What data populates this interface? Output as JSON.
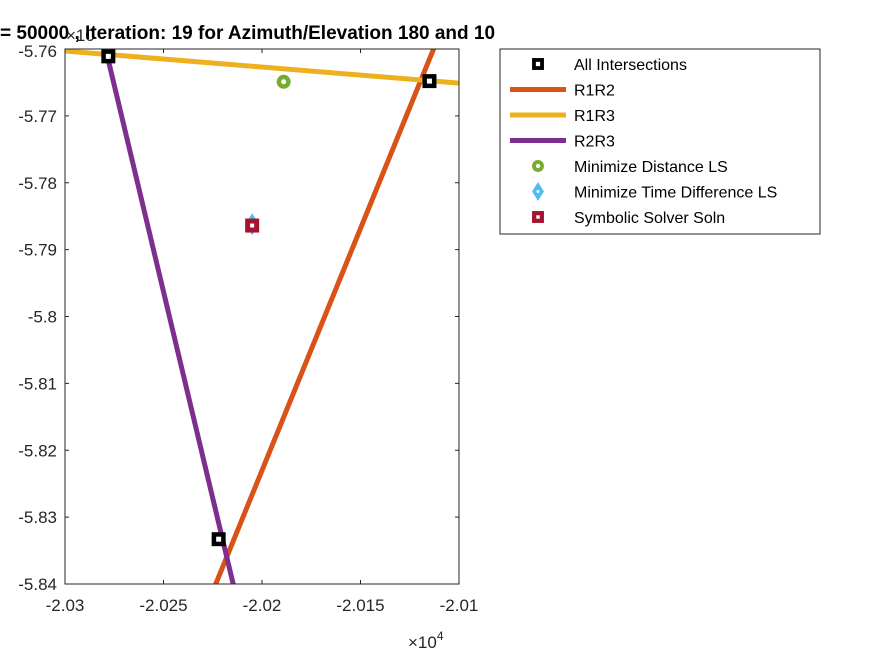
{
  "chart_data": {
    "type": "line",
    "title": "= 50000 , Iteration: 19 for Azimuth/Elevation 180 and 10",
    "xlabel": "",
    "ylabel": "",
    "x_exponent_label": "×10",
    "x_exponent_power": "4",
    "y_exponent_label": "×10",
    "xlim": [
      -2.03,
      -2.01
    ],
    "ylim": [
      -5.84,
      -5.76
    ],
    "x_ticks": [
      -2.03,
      -2.025,
      -2.02,
      -2.015,
      -2.01
    ],
    "x_tick_labels": [
      "-2.03",
      "-2.025",
      "-2.02",
      "-2.015",
      "-2.01"
    ],
    "y_ticks": [
      -5.76,
      -5.77,
      -5.78,
      -5.79,
      -5.8,
      -5.81,
      -5.82,
      -5.83,
      -5.84
    ],
    "y_tick_labels": [
      "-5.76",
      "-5.77",
      "-5.78",
      "-5.79",
      "-5.8",
      "-5.81",
      "-5.82",
      "-5.83",
      "-5.84"
    ],
    "grid": false,
    "legend_position": "outside-right-top",
    "series": [
      {
        "name": "All Intersections",
        "kind": "marker-square-hollow",
        "color": "#000000",
        "points": [
          [
            -2.0278,
            -5.7611
          ],
          [
            -2.0115,
            -5.7648
          ],
          [
            -2.0222,
            -5.8333
          ]
        ]
      },
      {
        "name": "R1R2",
        "kind": "line",
        "color": "#D95319",
        "points": [
          [
            -2.0229,
            -5.844
          ],
          [
            -2.0106,
            -5.755
          ]
        ]
      },
      {
        "name": "R1R3",
        "kind": "line",
        "color": "#EDB120",
        "points": [
          [
            -2.03,
            -5.7603
          ],
          [
            -2.01,
            -5.7651
          ]
        ]
      },
      {
        "name": "R2R3",
        "kind": "line",
        "color": "#7E2F8E",
        "points": [
          [
            -2.0281,
            -5.758
          ],
          [
            -2.0213,
            -5.842
          ]
        ]
      },
      {
        "name": "Minimize Distance LS",
        "kind": "marker-circle",
        "color": "#77AC30",
        "points": [
          [
            -2.0189,
            -5.7649
          ]
        ]
      },
      {
        "name": "Minimize Time Difference LS",
        "kind": "marker-diamond",
        "color": "#4DBEEE",
        "points": [
          [
            -2.0205,
            -5.7862
          ]
        ]
      },
      {
        "name": "Symbolic Solver Soln",
        "kind": "marker-square",
        "color": "#A2142F",
        "points": [
          [
            -2.0205,
            -5.7864
          ]
        ]
      }
    ]
  }
}
